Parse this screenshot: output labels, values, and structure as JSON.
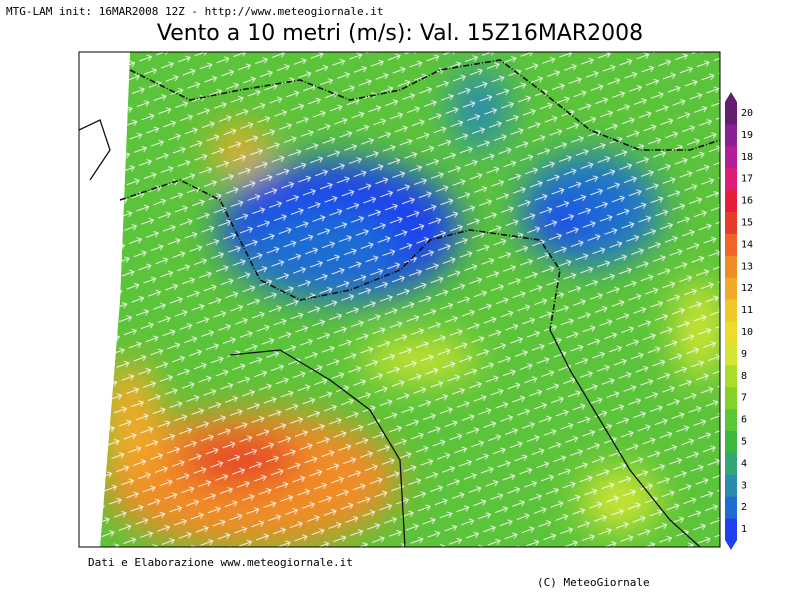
{
  "header": {
    "init": "MTG-LAM init: 16MAR2008 12Z - http://www.meteogiornale.it",
    "title": "Vento a 10 metri (m/s): Val. 15Z16MAR2008"
  },
  "colorbar": {
    "labels": [
      1,
      2,
      3,
      4,
      5,
      6,
      7,
      8,
      9,
      10,
      11,
      12,
      13,
      14,
      15,
      16,
      17,
      18,
      19,
      20
    ],
    "colors": [
      "#1f3ff0",
      "#1e6ed2",
      "#2a8cae",
      "#30a878",
      "#3cb83c",
      "#5ac832",
      "#82d228",
      "#aadc28",
      "#d2e632",
      "#eedc28",
      "#f0c828",
      "#f0aa28",
      "#f08c28",
      "#f06428",
      "#e63c28",
      "#e61e3c",
      "#dc1e78",
      "#b41e96",
      "#8c1e96",
      "#641e6e"
    ]
  },
  "footer": {
    "credits": "Dati e Elaborazione www.meteogiornale.it",
    "copyright": "(C) MeteoGiornale"
  }
}
